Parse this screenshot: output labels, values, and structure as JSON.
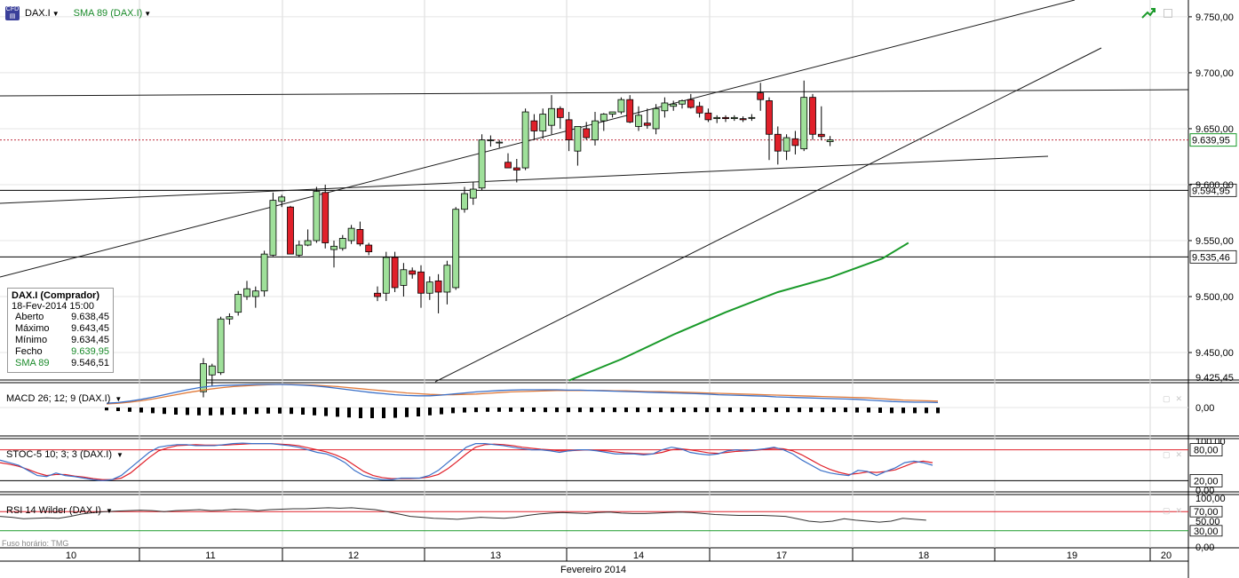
{
  "toolbar": {
    "symbol": "DAX.I",
    "sma_label": "SMA 89 (DAX.I)",
    "symbol_icon": "cfd-icon"
  },
  "infobox": {
    "title": "DAX.I (Comprador)",
    "datetime": "18-Fev-2014 15:00",
    "rows": [
      {
        "label": "Aberto",
        "value": "9.638,45"
      },
      {
        "label": "Máximo",
        "value": "9.643,45"
      },
      {
        "label": "Mínimo",
        "value": "9.634,45"
      },
      {
        "label": "Fecho",
        "value": "9.639,95"
      },
      {
        "label": "SMA 89",
        "value": "9.546,51"
      }
    ]
  },
  "colors": {
    "bull": "#9fe09a",
    "bear": "#e0202a",
    "sma": "#1a9a2a",
    "macd": "#3a70c8",
    "signal": "#e07a3a",
    "stoc_k": "#3a70c8",
    "stoc_d": "#e0202a",
    "rsi": "#333333",
    "level_red": "#e0202a",
    "level_green": "#1a9a2a"
  },
  "chart_data": [
    {
      "type": "candlestick",
      "title": "DAX.I",
      "series_name": "DAX.I",
      "ylim": [
        9425.45,
        9765
      ],
      "y_ticks": [
        "9.750,00",
        "9.700,00",
        "9.650,00",
        "9.600,00",
        "9.550,00",
        "9.500,00",
        "9.450,00"
      ],
      "y_tick_values": [
        9750,
        9700,
        9650,
        9600,
        9550,
        9500,
        9450
      ],
      "axis_bottom_label": "9.425,45",
      "last_price": {
        "label": "9.639,95",
        "value": 9639.95
      },
      "horizontal_levels": [
        {
          "label": "9.594,95",
          "value": 9594.95
        },
        {
          "label": "9.535,46",
          "value": 9535.46
        }
      ],
      "x_ticks": [
        "10",
        "11",
        "12",
        "13",
        "14",
        "17",
        "18",
        "19",
        "20"
      ],
      "x_title": "Fevereiro 2014",
      "candles": [
        {
          "o": 9415,
          "h": 9445,
          "l": 9410,
          "c": 9440
        },
        {
          "o": 9430,
          "h": 9440,
          "l": 9420,
          "c": 9438
        },
        {
          "o": 9432,
          "h": 9482,
          "l": 9430,
          "c": 9480
        },
        {
          "o": 9480,
          "h": 9485,
          "l": 9475,
          "c": 9482
        },
        {
          "o": 9486,
          "h": 9505,
          "l": 9483,
          "c": 9502
        },
        {
          "o": 9500,
          "h": 9514,
          "l": 9497,
          "c": 9507
        },
        {
          "o": 9500,
          "h": 9509,
          "l": 9490,
          "c": 9505
        },
        {
          "o": 9505,
          "h": 9541,
          "l": 9500,
          "c": 9538
        },
        {
          "o": 9537,
          "h": 9593,
          "l": 9536,
          "c": 9586
        },
        {
          "o": 9585,
          "h": 9591,
          "l": 9580,
          "c": 9589
        },
        {
          "o": 9580,
          "h": 9581,
          "l": 9540,
          "c": 9538
        },
        {
          "o": 9537,
          "h": 9550,
          "l": 9535,
          "c": 9546
        },
        {
          "o": 9546,
          "h": 9560,
          "l": 9545,
          "c": 9550
        },
        {
          "o": 9550,
          "h": 9598,
          "l": 9548,
          "c": 9594
        },
        {
          "o": 9593,
          "h": 9600,
          "l": 9543,
          "c": 9548
        },
        {
          "o": 9542,
          "h": 9550,
          "l": 9526,
          "c": 9545
        },
        {
          "o": 9543,
          "h": 9555,
          "l": 9541,
          "c": 9552
        },
        {
          "o": 9550,
          "h": 9564,
          "l": 9547,
          "c": 9561
        },
        {
          "o": 9560,
          "h": 9567,
          "l": 9545,
          "c": 9547
        },
        {
          "o": 9546,
          "h": 9548,
          "l": 9537,
          "c": 9540
        },
        {
          "o": 9503,
          "h": 9509,
          "l": 9496,
          "c": 9500
        },
        {
          "o": 9503,
          "h": 9540,
          "l": 9496,
          "c": 9535
        },
        {
          "o": 9535,
          "h": 9540,
          "l": 9504,
          "c": 9508
        },
        {
          "o": 9510,
          "h": 9530,
          "l": 9500,
          "c": 9524
        },
        {
          "o": 9523,
          "h": 9526,
          "l": 9516,
          "c": 9520
        },
        {
          "o": 9522,
          "h": 9528,
          "l": 9490,
          "c": 9503
        },
        {
          "o": 9503,
          "h": 9518,
          "l": 9497,
          "c": 9513
        },
        {
          "o": 9514,
          "h": 9520,
          "l": 9485,
          "c": 9504
        },
        {
          "o": 9504,
          "h": 9532,
          "l": 9493,
          "c": 9528
        },
        {
          "o": 9508,
          "h": 9580,
          "l": 9506,
          "c": 9578
        },
        {
          "o": 9578,
          "h": 9598,
          "l": 9575,
          "c": 9592
        },
        {
          "o": 9588,
          "h": 9602,
          "l": 9582,
          "c": 9596
        },
        {
          "o": 9597,
          "h": 9645,
          "l": 9595,
          "c": 9640
        },
        {
          "o": 9640,
          "h": 9644,
          "l": 9634,
          "c": 9640
        },
        {
          "o": 9638,
          "h": 9640,
          "l": 9633,
          "c": 9638
        },
        {
          "o": 9620,
          "h": 9628,
          "l": 9615,
          "c": 9615
        },
        {
          "o": 9615,
          "h": 9623,
          "l": 9602,
          "c": 9613
        },
        {
          "o": 9615,
          "h": 9668,
          "l": 9613,
          "c": 9665
        },
        {
          "o": 9657,
          "h": 9663,
          "l": 9640,
          "c": 9648
        },
        {
          "o": 9648,
          "h": 9668,
          "l": 9641,
          "c": 9663
        },
        {
          "o": 9653,
          "h": 9680,
          "l": 9645,
          "c": 9668
        },
        {
          "o": 9668,
          "h": 9670,
          "l": 9650,
          "c": 9660
        },
        {
          "o": 9658,
          "h": 9665,
          "l": 9630,
          "c": 9640
        },
        {
          "o": 9630,
          "h": 9650,
          "l": 9617,
          "c": 9652
        },
        {
          "o": 9650,
          "h": 9656,
          "l": 9640,
          "c": 9642
        },
        {
          "o": 9640,
          "h": 9665,
          "l": 9635,
          "c": 9657
        },
        {
          "o": 9657,
          "h": 9664,
          "l": 9648,
          "c": 9663
        },
        {
          "o": 9663,
          "h": 9665,
          "l": 9660,
          "c": 9665
        },
        {
          "o": 9665,
          "h": 9678,
          "l": 9663,
          "c": 9676
        },
        {
          "o": 9676,
          "h": 9680,
          "l": 9655,
          "c": 9656
        },
        {
          "o": 9652,
          "h": 9670,
          "l": 9648,
          "c": 9662
        },
        {
          "o": 9655,
          "h": 9668,
          "l": 9650,
          "c": 9653
        },
        {
          "o": 9650,
          "h": 9672,
          "l": 9645,
          "c": 9668
        },
        {
          "o": 9666,
          "h": 9678,
          "l": 9660,
          "c": 9673
        },
        {
          "o": 9670,
          "h": 9675,
          "l": 9666,
          "c": 9672
        },
        {
          "o": 9672,
          "h": 9676,
          "l": 9668,
          "c": 9675
        },
        {
          "o": 9676,
          "h": 9681,
          "l": 9668,
          "c": 9669
        },
        {
          "o": 9670,
          "h": 9674,
          "l": 9660,
          "c": 9664
        },
        {
          "o": 9664,
          "h": 9668,
          "l": 9656,
          "c": 9658
        },
        {
          "o": 9659,
          "h": 9662,
          "l": 9655,
          "c": 9660
        },
        {
          "o": 9660,
          "h": 9662,
          "l": 9656,
          "c": 9659
        },
        {
          "o": 9659,
          "h": 9662,
          "l": 9657,
          "c": 9660
        },
        {
          "o": 9659,
          "h": 9661,
          "l": 9656,
          "c": 9658
        },
        {
          "o": 9660,
          "h": 9663,
          "l": 9657,
          "c": 9660
        },
        {
          "o": 9682,
          "h": 9691,
          "l": 9666,
          "c": 9676
        },
        {
          "o": 9675,
          "h": 9678,
          "l": 9622,
          "c": 9645
        },
        {
          "o": 9645,
          "h": 9652,
          "l": 9618,
          "c": 9630
        },
        {
          "o": 9630,
          "h": 9645,
          "l": 9622,
          "c": 9642
        },
        {
          "o": 9641,
          "h": 9648,
          "l": 9627,
          "c": 9635
        },
        {
          "o": 9632,
          "h": 9693,
          "l": 9630,
          "c": 9678
        },
        {
          "o": 9678,
          "h": 9681,
          "l": 9640,
          "c": 9645
        },
        {
          "o": 9645,
          "h": 9670,
          "l": 9640,
          "c": 9643
        },
        {
          "o": 9638.45,
          "h": 9643.45,
          "l": 9634.45,
          "c": 9639.95
        }
      ],
      "sma89": [
        {
          "i": 42,
          "v": 9425
        },
        {
          "i": 48,
          "v": 9444
        },
        {
          "i": 54,
          "v": 9466
        },
        {
          "i": 60,
          "v": 9486
        },
        {
          "i": 66,
          "v": 9504
        },
        {
          "i": 72,
          "v": 9517
        },
        {
          "i": 78,
          "v": 9534
        },
        {
          "i": 81,
          "v": 9548
        }
      ]
    },
    {
      "type": "line",
      "title": "MACD 26; 12; 9 (DAX.I)",
      "y_ticks": [
        "0,00"
      ],
      "series": [
        {
          "name": "MACD",
          "values": [
            1.2,
            1.4,
            1.8,
            2.3,
            2.9,
            3.6,
            4.3,
            5.0,
            5.6,
            6.0,
            6.2,
            6.3,
            6.4,
            6.5,
            6.5,
            6.5,
            6.4,
            6.3,
            6.1,
            5.8,
            5.4,
            5.0,
            4.6,
            4.2,
            3.9,
            3.6,
            3.4,
            3.3,
            3.3,
            3.5,
            3.8,
            4.1,
            4.4,
            4.6,
            4.8,
            4.9,
            5.0,
            5.0,
            5.0,
            5.0,
            4.9,
            4.9,
            4.8,
            4.7,
            4.6,
            4.5,
            4.4,
            4.3,
            4.2,
            4.1,
            4.0,
            3.9,
            3.8,
            3.6,
            3.5,
            3.4,
            3.3,
            3.2,
            3.0,
            2.9,
            2.8,
            2.7,
            2.6,
            2.5,
            2.4,
            2.3,
            2.1,
            1.9,
            1.7,
            1.6,
            1.5,
            1.5,
            1.4
          ]
        },
        {
          "name": "Signal",
          "values": [
            1.0,
            1.2,
            1.5,
            1.9,
            2.4,
            3.0,
            3.6,
            4.2,
            4.7,
            5.2,
            5.6,
            5.9,
            6.1,
            6.3,
            6.4,
            6.5,
            6.5,
            6.4,
            6.3,
            6.1,
            5.9,
            5.6,
            5.3,
            5.0,
            4.7,
            4.4,
            4.1,
            3.9,
            3.7,
            3.6,
            3.6,
            3.7,
            3.8,
            4.0,
            4.2,
            4.4,
            4.5,
            4.6,
            4.7,
            4.8,
            4.8,
            4.8,
            4.8,
            4.8,
            4.7,
            4.7,
            4.6,
            4.5,
            4.5,
            4.4,
            4.3,
            4.2,
            4.1,
            4.0,
            3.9,
            3.8,
            3.7,
            3.6,
            3.5,
            3.4,
            3.3,
            3.2,
            3.1,
            3.0,
            2.9,
            2.8,
            2.7,
            2.5,
            2.3,
            2.1,
            2.0,
            1.9,
            1.8
          ]
        },
        {
          "name": "Histogram",
          "values": [
            -0.8,
            -1.0,
            -1.2,
            -1.4,
            -1.6,
            -1.8,
            -2.0,
            -2.1,
            -2.2,
            -2.2,
            -2.1,
            -2.0,
            -1.9,
            -1.8,
            -1.7,
            -1.7,
            -1.8,
            -2.0,
            -2.2,
            -2.4,
            -2.6,
            -2.8,
            -3.0,
            -3.0,
            -3.0,
            -2.9,
            -2.7,
            -2.5,
            -2.2,
            -1.9,
            -1.6,
            -1.4,
            -1.3,
            -1.2,
            -1.2,
            -1.2,
            -1.2,
            -1.2,
            -1.3,
            -1.3,
            -1.3,
            -1.3,
            -1.3,
            -1.3,
            -1.3,
            -1.3,
            -1.3,
            -1.3,
            -1.3,
            -1.3,
            -1.3,
            -1.3,
            -1.3,
            -1.3,
            -1.3,
            -1.3,
            -1.3,
            -1.3,
            -1.3,
            -1.3,
            -1.3,
            -1.3,
            -1.3,
            -1.3,
            -1.3,
            -1.4,
            -1.4,
            -1.5,
            -1.6,
            -1.6,
            -1.6,
            -1.6,
            -1.6
          ]
        }
      ]
    },
    {
      "type": "line",
      "title": "STOC-5 10; 3; 3 (DAX.I)",
      "ylim": [
        0,
        100
      ],
      "y_ticks": [
        "100,00",
        "80,00",
        "20,00",
        "0,00"
      ],
      "levels": [
        {
          "label": "80,00",
          "value": 80
        },
        {
          "label": "20,00",
          "value": 20
        }
      ],
      "series": [
        {
          "name": "%K",
          "values": [
            60,
            55,
            50,
            40,
            30,
            28,
            35,
            30,
            28,
            25,
            22,
            20,
            22,
            30,
            45,
            60,
            75,
            85,
            88,
            90,
            90,
            88,
            88,
            88,
            90,
            92,
            93,
            92,
            92,
            92,
            90,
            88,
            85,
            80,
            75,
            72,
            65,
            55,
            40,
            30,
            25,
            22,
            22,
            25,
            25,
            25,
            30,
            40,
            55,
            70,
            85,
            92,
            92,
            90,
            88,
            85,
            82,
            80,
            80,
            78,
            75,
            78,
            80,
            80,
            78,
            75,
            72,
            72,
            72,
            70,
            72,
            80,
            85,
            82,
            75,
            72,
            70,
            72,
            78,
            80,
            78,
            80,
            82,
            85,
            80,
            72,
            60,
            50,
            40,
            35,
            32,
            30,
            40,
            38,
            30,
            38,
            45,
            55,
            58,
            55,
            50
          ]
        },
        {
          "name": "%D",
          "values": [
            55,
            52,
            48,
            42,
            35,
            30,
            32,
            32,
            29,
            27,
            24,
            22,
            22,
            25,
            35,
            50,
            65,
            78,
            84,
            88,
            89,
            90,
            89,
            89,
            89,
            90,
            91,
            92,
            92,
            92,
            91,
            90,
            88,
            84,
            80,
            76,
            70,
            62,
            50,
            38,
            30,
            26,
            24,
            24,
            24,
            25,
            27,
            32,
            43,
            57,
            72,
            85,
            90,
            91,
            90,
            88,
            85,
            83,
            81,
            80,
            78,
            78,
            79,
            80,
            79,
            78,
            76,
            74,
            73,
            72,
            72,
            75,
            80,
            82,
            80,
            77,
            74,
            73,
            75,
            77,
            78,
            79,
            81,
            83,
            82,
            78,
            70,
            60,
            50,
            42,
            36,
            32,
            34,
            37,
            36,
            38,
            41,
            48,
            55,
            58,
            55
          ]
        }
      ]
    },
    {
      "type": "line",
      "title": "RSI 14 Wilder (DAX.I)",
      "ylim": [
        0,
        100
      ],
      "y_ticks": [
        "100,00",
        "70,00",
        "50,00",
        "30,00",
        "0,00"
      ],
      "levels": [
        {
          "label": "70,00",
          "value": 70
        },
        {
          "label": "30,00",
          "value": 30
        }
      ],
      "series": [
        {
          "name": "RSI",
          "values": [
            60,
            58,
            55,
            56,
            57,
            56,
            60,
            65,
            68,
            70,
            71,
            72,
            73,
            72,
            70,
            72,
            73,
            74,
            72,
            73,
            75,
            74,
            72,
            74,
            75,
            76,
            76,
            77,
            78,
            77,
            78,
            76,
            74,
            70,
            65,
            60,
            58,
            56,
            55,
            54,
            56,
            58,
            57,
            56,
            58,
            62,
            65,
            67,
            68,
            67,
            66,
            68,
            69,
            67,
            66,
            66,
            67,
            68,
            69,
            68,
            66,
            64,
            63,
            62,
            62,
            62,
            61,
            60,
            55,
            50,
            48,
            50,
            55,
            52,
            50,
            48,
            50,
            56,
            54,
            52
          ]
        }
      ]
    }
  ]
}
